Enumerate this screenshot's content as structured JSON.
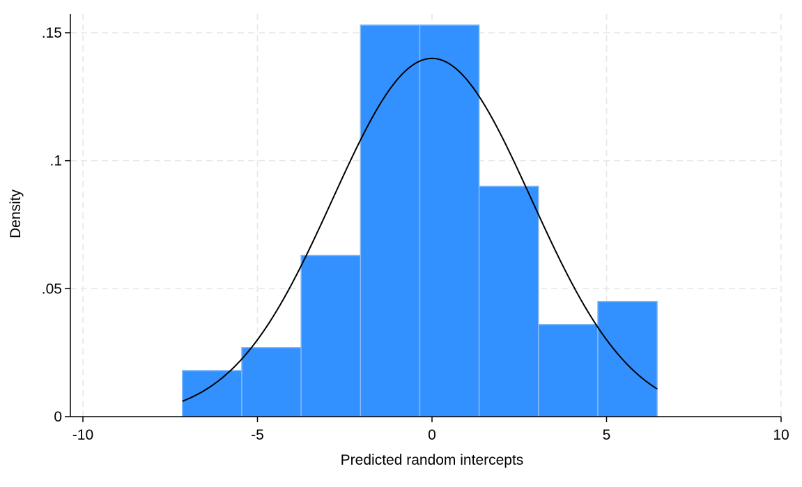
{
  "chart_data": {
    "type": "bar",
    "subtype": "histogram-with-normal-density",
    "xlabel": "Predicted random intercepts",
    "ylabel": "Density",
    "xlim": [
      -10,
      10
    ],
    "ylim": [
      0,
      0.15
    ],
    "x_ticks": [
      -10,
      -5,
      0,
      5,
      10
    ],
    "x_tick_labels": [
      "-10",
      "-5",
      "0",
      "5",
      "10"
    ],
    "y_ticks": [
      0,
      0.05,
      0.1,
      0.15
    ],
    "y_tick_labels": [
      "0",
      ".05",
      ".1",
      ".15"
    ],
    "grid": true,
    "bins": [
      {
        "start": -7.15,
        "end": -5.45,
        "density": 0.018
      },
      {
        "start": -5.45,
        "end": -3.75,
        "density": 0.027
      },
      {
        "start": -3.75,
        "end": -2.05,
        "density": 0.063
      },
      {
        "start": -2.05,
        "end": -0.35,
        "density": 0.153
      },
      {
        "start": -0.35,
        "end": 1.35,
        "density": 0.153
      },
      {
        "start": 1.35,
        "end": 3.05,
        "density": 0.09
      },
      {
        "start": 3.05,
        "end": 4.75,
        "density": 0.036
      },
      {
        "start": 4.75,
        "end": 6.45,
        "density": 0.045
      }
    ],
    "normal_curve": {
      "mean": 0.0,
      "sd": 2.85,
      "x_range": [
        -7.15,
        6.45
      ]
    },
    "colors": {
      "bar_fill": "#3391ff",
      "bar_edge": "#86b8f3",
      "curve": "#000000",
      "grid": "#e6e6e6",
      "axis": "#000000"
    }
  }
}
